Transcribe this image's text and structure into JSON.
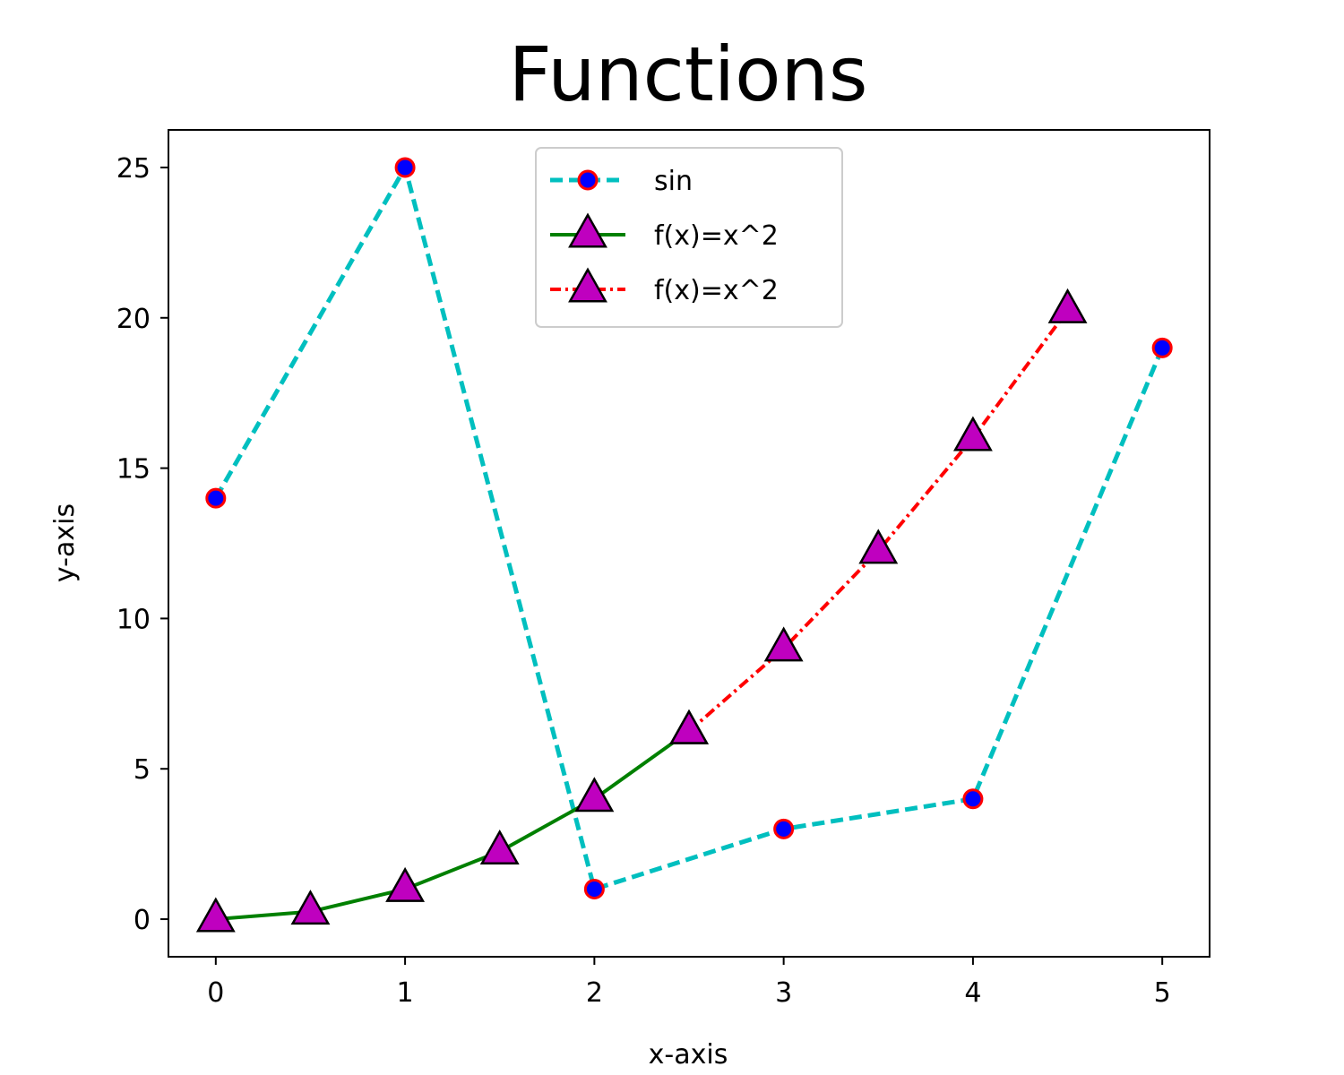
{
  "chart_data": {
    "type": "line",
    "title": "Functions",
    "xlabel": "x-axis",
    "ylabel": "y-axis",
    "xlim": [
      -0.25,
      5.25
    ],
    "ylim": [
      -1.25,
      26.25
    ],
    "xticks": [
      0,
      1,
      2,
      3,
      4,
      5
    ],
    "yticks": [
      0,
      5,
      10,
      15,
      20,
      25
    ],
    "grid": false,
    "legend_position": "upper-center",
    "series": [
      {
        "name": "sin",
        "line_color": "#00bfbf",
        "line_style": "dashed",
        "marker": "circle",
        "marker_face": "#0000ff",
        "marker_edge": "#ff0000",
        "x": [
          0,
          1,
          2,
          3,
          4,
          5
        ],
        "y": [
          14,
          25,
          1,
          3,
          4,
          19
        ]
      },
      {
        "name": "f(x)=x^2",
        "line_color": "#008000",
        "line_style": "solid",
        "marker": "triangle",
        "marker_face": "#bf00bf",
        "marker_edge": "#000000",
        "x": [
          0,
          0.5,
          1,
          1.5,
          2,
          2.5
        ],
        "y": [
          0,
          0.25,
          1,
          2.25,
          4,
          6.25
        ]
      },
      {
        "name": "f(x)=x^2",
        "line_color": "#ff0000",
        "line_style": "dashdot",
        "marker": "triangle",
        "marker_face": "#bf00bf",
        "marker_edge": "#000000",
        "x": [
          2.5,
          3,
          3.5,
          4,
          4.5
        ],
        "y": [
          6.25,
          9,
          12.25,
          16,
          20.25
        ]
      }
    ]
  }
}
